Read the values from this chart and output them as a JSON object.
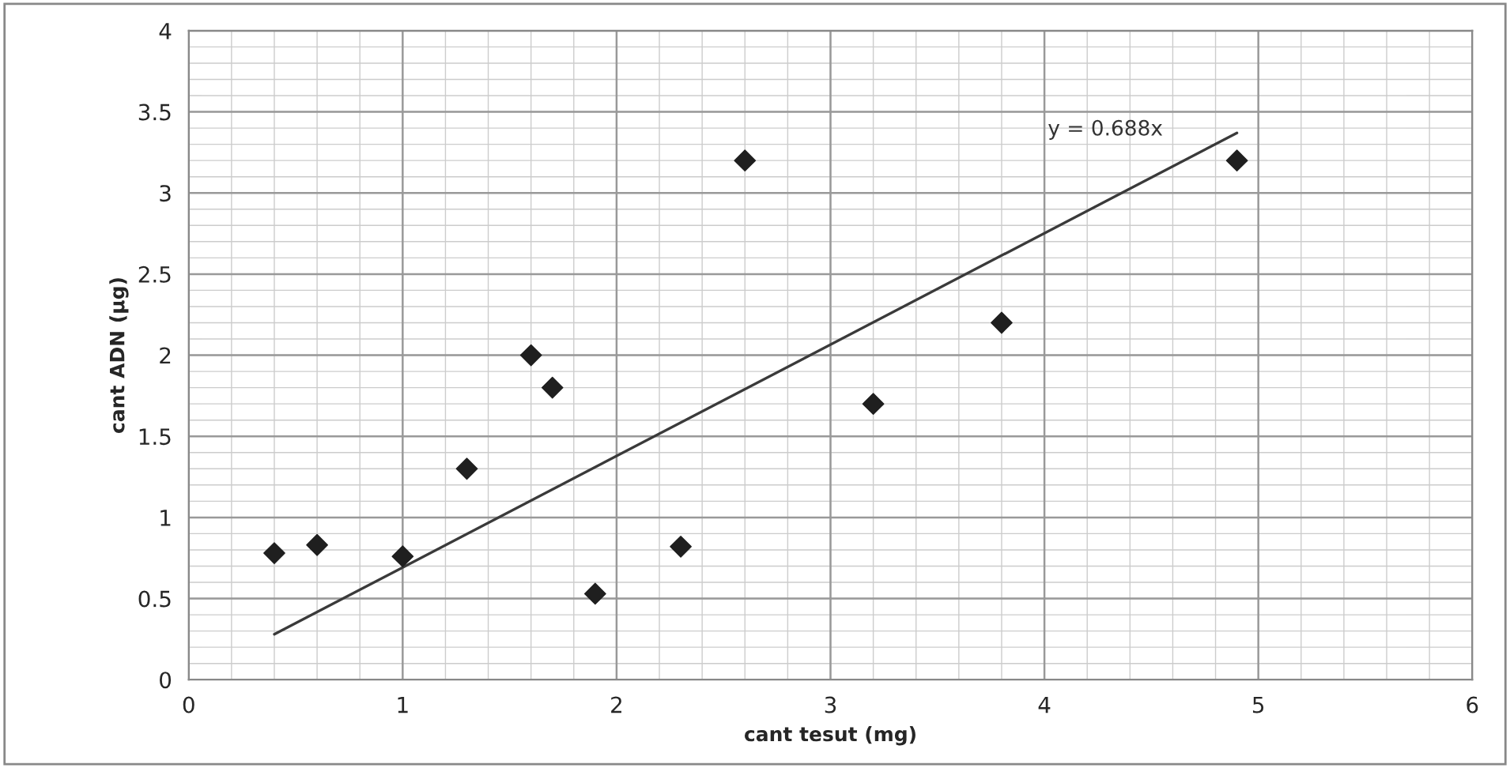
{
  "chart_data": {
    "type": "scatter",
    "xlabel": "cant tesut (mg)",
    "ylabel": "cant ADN (µg)",
    "xlim": [
      0,
      6
    ],
    "xticks": [
      0,
      1,
      2,
      3,
      4,
      5,
      6
    ],
    "ylim": [
      0,
      4
    ],
    "yticks": [
      0,
      0.5,
      1,
      1.5,
      2,
      2.5,
      3,
      3.5,
      4
    ],
    "grid": true,
    "legend": false,
    "marker": "diamond",
    "series": [
      {
        "color": "#1f1f1f",
        "x": [
          0.4,
          0.6,
          1.0,
          1.3,
          1.6,
          1.7,
          1.9,
          2.3,
          2.6,
          3.2,
          3.8,
          4.9
        ],
        "values": [
          0.78,
          0.83,
          0.76,
          1.3,
          2.0,
          1.8,
          0.53,
          0.82,
          3.2,
          1.7,
          2.2,
          3.2
        ]
      },
      {
        "type": "line",
        "color": "#3a3a3a",
        "marker": "none",
        "line_style": "solid",
        "x": [
          0.4,
          4.9
        ],
        "values": [
          0.28,
          3.37
        ]
      }
    ],
    "annotations": [
      {
        "text": "y = 0.688x",
        "x": 4.4,
        "y": 3.03
      }
    ]
  }
}
